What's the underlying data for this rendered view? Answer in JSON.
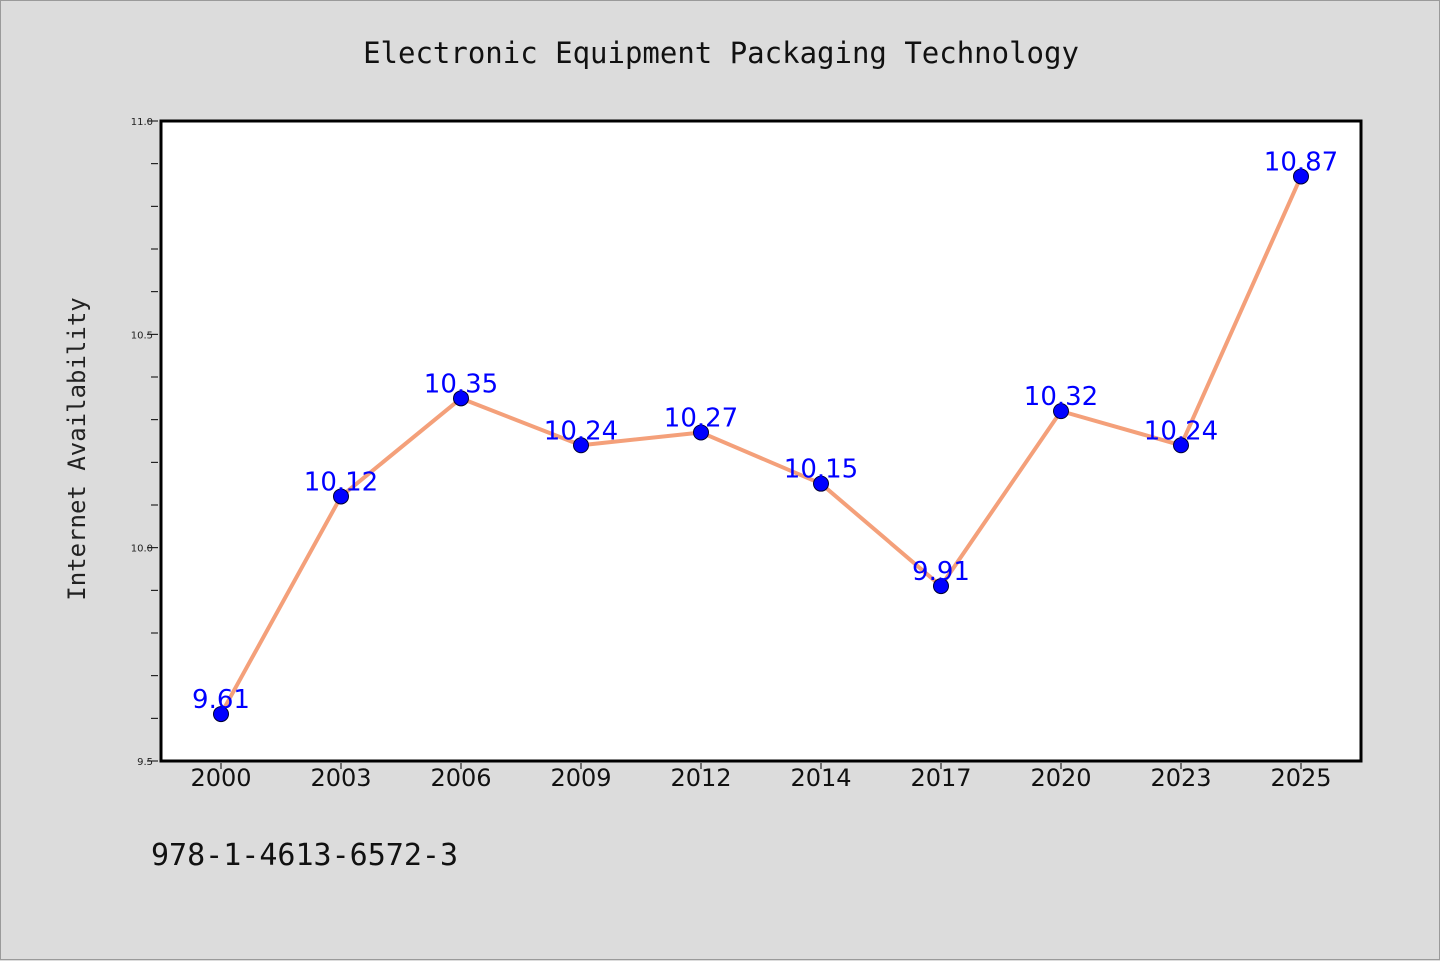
{
  "chart_data": {
    "type": "line",
    "title": "Electronic Equipment Packaging Technology",
    "xlabel": "",
    "ylabel": "Internet Availability",
    "categories": [
      "2000",
      "2003",
      "2006",
      "2009",
      "2012",
      "2014",
      "2017",
      "2020",
      "2023",
      "2025"
    ],
    "series": [
      {
        "values": [
          9.61,
          10.12,
          10.35,
          10.24,
          10.27,
          10.15,
          9.91,
          10.32,
          10.24,
          10.87
        ],
        "labels": [
          "9.61",
          "10.12",
          "10.35",
          "10.24",
          "10.27",
          "10.15",
          "9.91",
          "10.32",
          "10.24",
          "10.87"
        ]
      }
    ],
    "ylim": [
      9.5,
      11.0
    ],
    "yticks": [
      "9.5",
      "10.0",
      "10.5",
      "11.0"
    ],
    "grid": false,
    "line_color": "#f4a07a",
    "marker_color": "#0000ff",
    "label_color": "#0000ff",
    "background": "#dcdcdc",
    "plot_background": "#ffffff"
  },
  "footer": {
    "isbn": "978-1-4613-6572-3"
  }
}
